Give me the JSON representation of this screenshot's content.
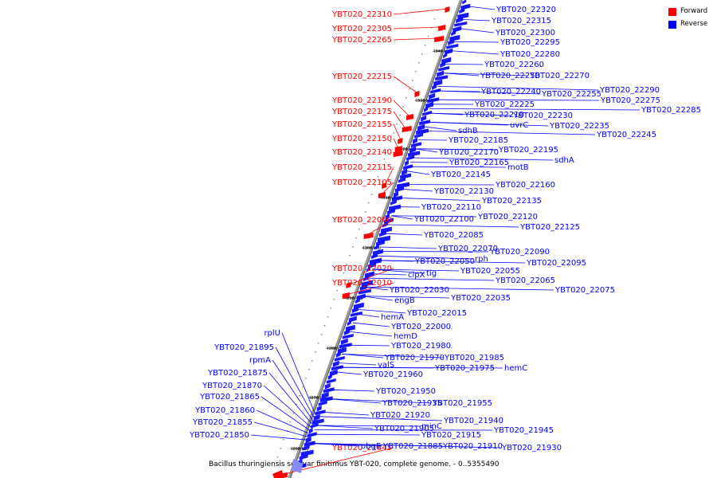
{
  "legend": [
    {
      "label": "Forward",
      "color": "#ff0000"
    },
    {
      "label": "Reverse",
      "color": "#0000ff"
    }
  ],
  "caption": "Bacillus thuringiensis serovar finitimus YBT-020, complete genome. - 0..5355490",
  "colors": {
    "forward": "#ff0000",
    "reverse": "#0000ff",
    "backbone": "#808080"
  },
  "ticks": [
    "4340 kbp",
    "4330 kbp",
    "4320 kbp",
    "4310 kbp",
    "4300 kbp",
    "4290 kbp",
    "4280 kbp",
    "4270 kbp",
    "4260 kbp"
  ],
  "forward_labels": [
    "YBT020_22310",
    "YBT020_22305",
    "YBT020_22265",
    "YBT020_22215",
    "YBT020_22190",
    "YBT020_22175",
    "YBT020_22155",
    "YBT020_22150",
    "YBT020_22140",
    "YBT020_22115",
    "YBT020_22105",
    "YBT020_22060",
    "YBT020_22020",
    "YBT020_22010",
    "YBT020_21845"
  ],
  "reverse_left_labels": [
    "rplU",
    "YBT020_21895",
    "rpmA",
    "YBT020_21875",
    "YBT020_21870",
    "YBT020_21865",
    "YBT020_21860",
    "YBT020_21855",
    "YBT020_21850"
  ],
  "reverse_labels": [
    "YBT020_22320",
    "YBT020_22315",
    "YBT020_22300",
    "YBT020_22295",
    "YBT020_22280",
    "YBT020_22260",
    "YBT020_22270",
    "YBT020_22250",
    "YBT020_22290",
    "YBT020_22255",
    "YBT020_22275",
    "YBT020_22240",
    "YBT020_22285",
    "YBT020_22225",
    "YBT020_22210",
    "YBT020_22230",
    "uvrC",
    "YBT020_22235",
    "sdhB",
    "YBT020_22245",
    "YBT020_22185",
    "YBT020_22195",
    "YBT020_22170",
    "sdhA",
    "YBT020_22165",
    "motB",
    "YBT020_22145",
    "YBT020_22160",
    "YBT020_22130",
    "YBT020_22135",
    "YBT020_22110",
    "YBT020_22100",
    "YBT020_22120",
    "YBT020_22125",
    "YBT020_22085",
    "YBT020_22070",
    "YBT020_22090",
    "YBT020_22050",
    "rph",
    "YBT020_22095",
    "YBT020_22055",
    "clpX",
    "tig",
    "YBT020_22065",
    "YBT020_22030",
    "YBT020_22075",
    "engB",
    "YBT020_22035",
    "YBT020_22015",
    "hemA",
    "YBT020_22000",
    "hemD",
    "YBT020_21980",
    "YBT020_21970",
    "YBT020_21985",
    "valS",
    "YBT020_21975",
    "hemC",
    "YBT020_21960",
    "YBT020_21950",
    "YBT020_21935",
    "YBT020_21955",
    "YBT020_21920",
    "YBT020_21940",
    "YBT020_21905",
    "minC",
    "YBT020_21945",
    "YBT020_21915",
    "obgE",
    "YBT020_21885",
    "YBT020_21910",
    "YBT020_21930"
  ]
}
